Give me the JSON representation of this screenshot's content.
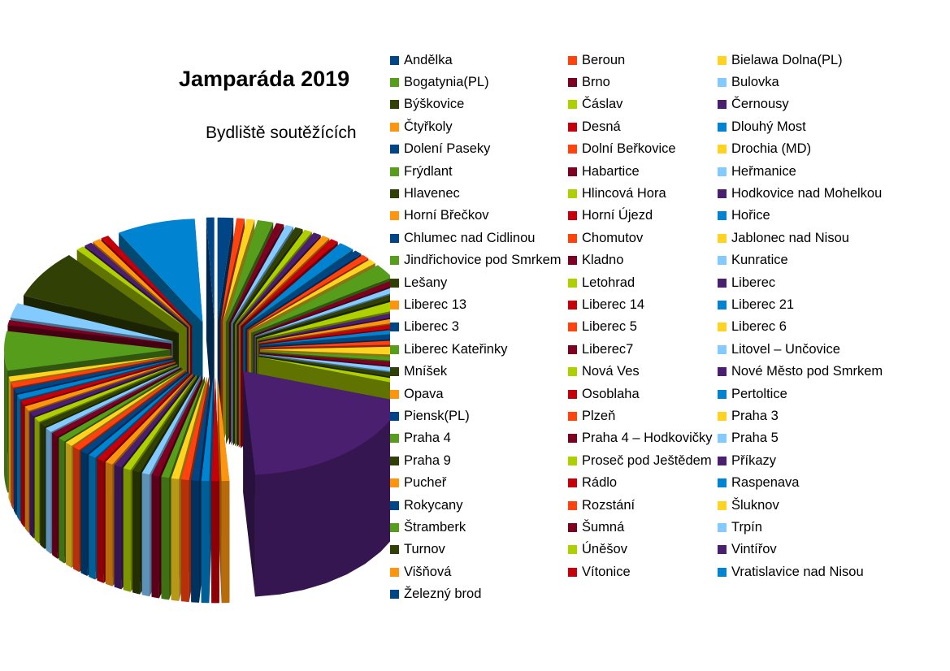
{
  "chart_data": {
    "type": "pie",
    "title": "Jamparáda 2019",
    "subtitle": "Bydliště soutěžících",
    "style": "3d-exploded",
    "legend_position": "right",
    "categories": [
      "Andělka",
      "Beroun",
      "Bielawa Dolna(PL)",
      "Bogatynia(PL)",
      "Brno",
      "Bulovka",
      "Býškovice",
      "Čáslav",
      "Černousy",
      "Čtyřkoly",
      "Desná",
      "Dlouhý Most",
      "Dolení Paseky",
      "Dolní Beřkovice",
      "Drochia (MD)",
      "Frýdlant",
      "Habartice",
      "Heřmanice",
      "Hlavenec",
      "Hlincová Hora",
      "Hodkovice nad Mohelkou",
      "Horní Břečkov",
      "Horní Újezd",
      "Hořice",
      "Chlumec nad Cidlinou",
      "Chomutov",
      "Jablonec nad Nisou",
      "Jindřichovice pod Smrkem",
      "Kladno",
      "Kunratice",
      "Lešany",
      "Letohrad",
      "Liberec",
      "Liberec 13",
      "Liberec 14",
      "Liberec 21",
      "Liberec 3",
      "Liberec 5",
      "Liberec 6",
      "Liberec Kateřinky",
      "Liberec7",
      "Litovel – Unčovice",
      "Mníšek",
      "Nová Ves",
      "Nové Město pod Smrkem",
      "Opava",
      "Osoblaha",
      "Pertoltice",
      "Piensk(PL)",
      "Plzeň",
      "Praha 3",
      "Praha 4",
      "Praha 4 – Hodkovičky",
      "Praha 5",
      "Praha 9",
      "Proseč pod Ještědem",
      "Příkazy",
      "Pucheř",
      "Rádlo",
      "Raspenava",
      "Rokycany",
      "Rozstání",
      "Šluknov",
      "Štramberk",
      "Šumná",
      "Trpín",
      "Turnov",
      "Úněšov",
      "Vintířov",
      "Višňová",
      "Vítonice",
      "Vratislavice nad Nisou",
      "Železný brod"
    ],
    "values": [
      2,
      1,
      1,
      2,
      1,
      1,
      1,
      1,
      1,
      1,
      1,
      2,
      1,
      1,
      1,
      3,
      1,
      1,
      1,
      2,
      1,
      1,
      1,
      1,
      1,
      1,
      2,
      1,
      1,
      1,
      1,
      1,
      25,
      1,
      1,
      1,
      1,
      1,
      1,
      1,
      1,
      1,
      1,
      1,
      1,
      1,
      1,
      1,
      1,
      1,
      1,
      1,
      1,
      1,
      1,
      1,
      1,
      1,
      1,
      1,
      1,
      1,
      1,
      8,
      1,
      3,
      10,
      1,
      1,
      1,
      1,
      10,
      1
    ],
    "colors": [
      "#004586",
      "#ff420e",
      "#ffd320",
      "#579d1c",
      "#7e0021",
      "#83caff",
      "#314004",
      "#aecf00",
      "#4b1f6f",
      "#ff950e",
      "#c5000b",
      "#0084d1"
    ]
  }
}
